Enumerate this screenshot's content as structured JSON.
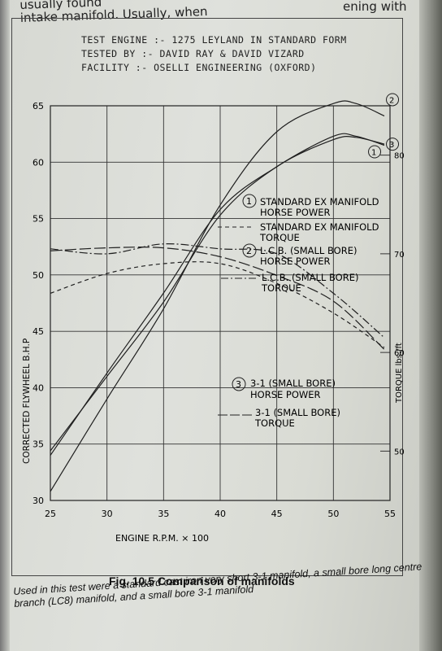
{
  "page": {
    "top_line_left": "usually found",
    "top_line_2": "intake manifold. Usually, when",
    "top_line_right": "ening with"
  },
  "header": {
    "line1": "TEST ENGINE :- 1275  LEYLAND  IN STANDARD FORM",
    "line2": "TESTED BY :- DAVID RAY & DAVID VIZARD",
    "line3": "FACILITY :- OSELLI  ENGINEERING  (OXFORD)"
  },
  "legend": {
    "item1": {
      "number": "1",
      "line1": "STANDARD EX MANIFOLD",
      "line2": "HORSE POWER"
    },
    "item1t": {
      "line1": "STANDARD EX MANIFOLD",
      "line2": "TORQUE"
    },
    "item2": {
      "number": "2",
      "line1": "L.C.B. (SMALL BORE)",
      "line2": "HORSE POWER"
    },
    "item2t": {
      "line1": "L.C.B. (SMALL BORE)",
      "line2": "TORQUE"
    },
    "item3": {
      "number": "3",
      "line1": "3-1 (SMALL BORE)",
      "line2": "HORSE POWER"
    },
    "item3t": {
      "line1": "3-1 (SMALL BORE)",
      "line2": "TORQUE"
    }
  },
  "caption": {
    "title": "Fig. 10.5 Comparison of manifolds",
    "body": "Used in this test were a standard cast iron very short 3-1 manifold, a small bore long centre branch (LC8) manifold, and a small bore 3-1 manifold"
  },
  "colors": {
    "ink": "#1f1f1f",
    "paper": "#dcded8"
  },
  "chart_data": {
    "type": "line",
    "xlabel": "ENGINE  R.P.M. × 100",
    "ylabel": "CORRECTED FLYWHEEL  B.H.P",
    "y2label": "TORQUE  lbs./ft",
    "xlim": [
      25,
      55
    ],
    "ylim": [
      30,
      65
    ],
    "y2lim": [
      45,
      85
    ],
    "x_ticks": [
      "25",
      "30",
      "35",
      "40",
      "45",
      "50",
      "55"
    ],
    "y_ticks": [
      "30",
      "35",
      "40",
      "45",
      "50",
      "55",
      "60",
      "65"
    ],
    "y2_ticks": [
      "50",
      "60",
      "70",
      "80"
    ],
    "grid": true,
    "series": [
      {
        "name": "STANDARD EX MANIFOLD HORSE POWER",
        "label": "1",
        "axis": "left",
        "style": "solid",
        "x": [
          25,
          30,
          35,
          40,
          45,
          50,
          52,
          54.5
        ],
        "y": [
          34.0,
          41.3,
          48.4,
          55.8,
          59.6,
          62.3,
          62.3,
          61.5
        ]
      },
      {
        "name": "L.C.B. (SMALL BORE) HORSE POWER",
        "label": "2",
        "axis": "left",
        "style": "solid",
        "x": [
          25,
          30,
          35,
          40,
          45,
          50,
          52,
          54.5
        ],
        "y": [
          30.8,
          39.0,
          47.0,
          56.2,
          62.7,
          65.2,
          65.2,
          64.1
        ]
      },
      {
        "name": "3-1 (SMALL BORE) HORSE POWER",
        "label": "3",
        "axis": "left",
        "style": "solid",
        "x": [
          25,
          30,
          35,
          40,
          45,
          50,
          52,
          54.5
        ],
        "y": [
          34.4,
          41.0,
          47.6,
          55.3,
          59.6,
          62.0,
          62.2,
          61.6
        ]
      },
      {
        "name": "STANDARD EX MANIFOLD TORQUE",
        "axis": "right",
        "style": "dashed",
        "x": [
          25,
          30,
          35,
          40,
          45,
          50,
          54.5
        ],
        "y": [
          66.0,
          68.0,
          69.0,
          69.0,
          67.0,
          64.0,
          60.5
        ]
      },
      {
        "name": "L.C.B. (SMALL BORE) TORQUE",
        "axis": "right",
        "style": "dashdot",
        "x": [
          25,
          30,
          35,
          40,
          45,
          50,
          54.5
        ],
        "y": [
          70.5,
          70.0,
          71.0,
          70.5,
          70.0,
          66.0,
          61.5
        ]
      },
      {
        "name": "3-1 (SMALL BORE) TORQUE",
        "axis": "right",
        "style": "longdash",
        "x": [
          25,
          30,
          35,
          40,
          45,
          50,
          54.5
        ],
        "y": [
          70.3,
          70.6,
          70.6,
          69.7,
          67.8,
          65.2,
          60.3
        ]
      }
    ]
  }
}
